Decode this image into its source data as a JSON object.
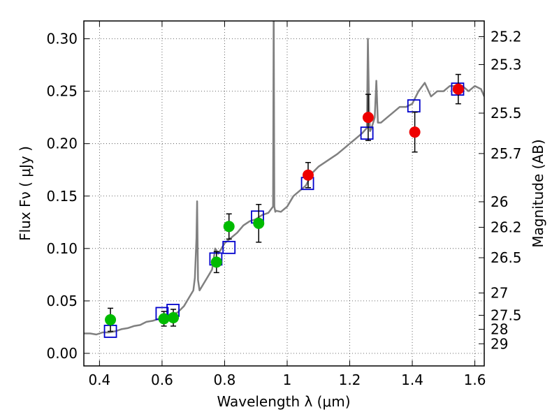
{
  "chart_data": {
    "type": "scatter",
    "title": "",
    "xlabel": "Wavelength  λ (μm)",
    "ylabel": "Flux  Fν  ( μJy )",
    "y2label": "Magnitude (AB)",
    "xlim": [
      0.35,
      1.63
    ],
    "ylim": [
      -0.012,
      0.317
    ],
    "grid": true,
    "x_ticks": [
      0.4,
      0.6,
      0.8,
      1.0,
      1.2,
      1.4,
      1.6
    ],
    "x_tick_labels": [
      "0.4",
      "0.6",
      "0.8",
      "1",
      "1.2",
      "1.4",
      "1.6"
    ],
    "y_ticks": [
      0.0,
      0.05,
      0.1,
      0.15,
      0.2,
      0.25,
      0.3
    ],
    "y_tick_labels": [
      "0.00",
      "0.05",
      "0.10",
      "0.15",
      "0.20",
      "0.25",
      "0.30"
    ],
    "magnitude_ticks": [
      25.2,
      25.3,
      25.5,
      25.7,
      26,
      26.2,
      26.5,
      27,
      27.5,
      28,
      29
    ],
    "magnitude_tick_labels": [
      "25.2",
      "25.3",
      "25.5",
      "25.7",
      "26",
      "26.2",
      "26.5",
      "27",
      "27.5",
      "28",
      "29"
    ],
    "colors": {
      "model": "#808080",
      "model_photometry": "#0000cc",
      "green_points": "#00bb00",
      "red_points": "#ee0000",
      "errorbar": "#000000"
    },
    "series": [
      {
        "name": "model spectrum",
        "kind": "line",
        "x": [
          0.35,
          0.37,
          0.39,
          0.41,
          0.43,
          0.45,
          0.47,
          0.49,
          0.51,
          0.53,
          0.55,
          0.57,
          0.59,
          0.61,
          0.63,
          0.65,
          0.67,
          0.69,
          0.7,
          0.705,
          0.71,
          0.712,
          0.715,
          0.72,
          0.73,
          0.74,
          0.75,
          0.76,
          0.77,
          0.78,
          0.79,
          0.8,
          0.82,
          0.84,
          0.86,
          0.88,
          0.9,
          0.92,
          0.94,
          0.955,
          0.957,
          0.959,
          0.962,
          0.965,
          0.98,
          1.0,
          1.02,
          1.04,
          1.06,
          1.08,
          1.1,
          1.12,
          1.14,
          1.16,
          1.18,
          1.2,
          1.22,
          1.24,
          1.255,
          1.258,
          1.262,
          1.265,
          1.27,
          1.28,
          1.285,
          1.29,
          1.3,
          1.32,
          1.34,
          1.36,
          1.38,
          1.4,
          1.42,
          1.44,
          1.46,
          1.48,
          1.5,
          1.52,
          1.54,
          1.56,
          1.58,
          1.6,
          1.62,
          1.63
        ],
        "y": [
          0.019,
          0.019,
          0.018,
          0.02,
          0.02,
          0.021,
          0.023,
          0.024,
          0.026,
          0.027,
          0.03,
          0.031,
          0.033,
          0.035,
          0.037,
          0.039,
          0.045,
          0.055,
          0.06,
          0.072,
          0.11,
          0.145,
          0.07,
          0.06,
          0.065,
          0.07,
          0.075,
          0.08,
          0.1,
          0.095,
          0.1,
          0.105,
          0.11,
          0.115,
          0.122,
          0.126,
          0.128,
          0.132,
          0.134,
          0.14,
          0.33,
          0.14,
          0.135,
          0.136,
          0.135,
          0.14,
          0.15,
          0.155,
          0.16,
          0.172,
          0.178,
          0.182,
          0.186,
          0.19,
          0.195,
          0.2,
          0.205,
          0.21,
          0.215,
          0.3,
          0.23,
          0.212,
          0.215,
          0.225,
          0.26,
          0.22,
          0.22,
          0.225,
          0.23,
          0.235,
          0.235,
          0.238,
          0.25,
          0.258,
          0.245,
          0.25,
          0.25,
          0.255,
          0.255,
          0.255,
          0.25,
          0.255,
          0.252,
          0.245
        ]
      },
      {
        "name": "model photometry",
        "kind": "open-square",
        "x": [
          0.435,
          0.6,
          0.635,
          0.772,
          0.814,
          0.905,
          1.065,
          1.255,
          1.405,
          1.545
        ],
        "y": [
          0.021,
          0.038,
          0.041,
          0.09,
          0.101,
          0.13,
          0.162,
          0.21,
          0.236,
          0.252
        ]
      },
      {
        "name": "observed (green)",
        "kind": "filled-circle",
        "x": [
          0.435,
          0.606,
          0.636,
          0.774,
          0.814,
          0.909
        ],
        "y": [
          0.032,
          0.033,
          0.034,
          0.087,
          0.121,
          0.124
        ],
        "err": [
          0.011,
          0.007,
          0.008,
          0.01,
          0.012,
          0.018
        ]
      },
      {
        "name": "observed (red)",
        "kind": "filled-circle",
        "x": [
          1.067,
          1.259,
          1.408,
          1.547
        ],
        "y": [
          0.17,
          0.225,
          0.211,
          0.252
        ],
        "err": [
          0.012,
          0.022,
          0.019,
          0.014
        ]
      }
    ]
  }
}
